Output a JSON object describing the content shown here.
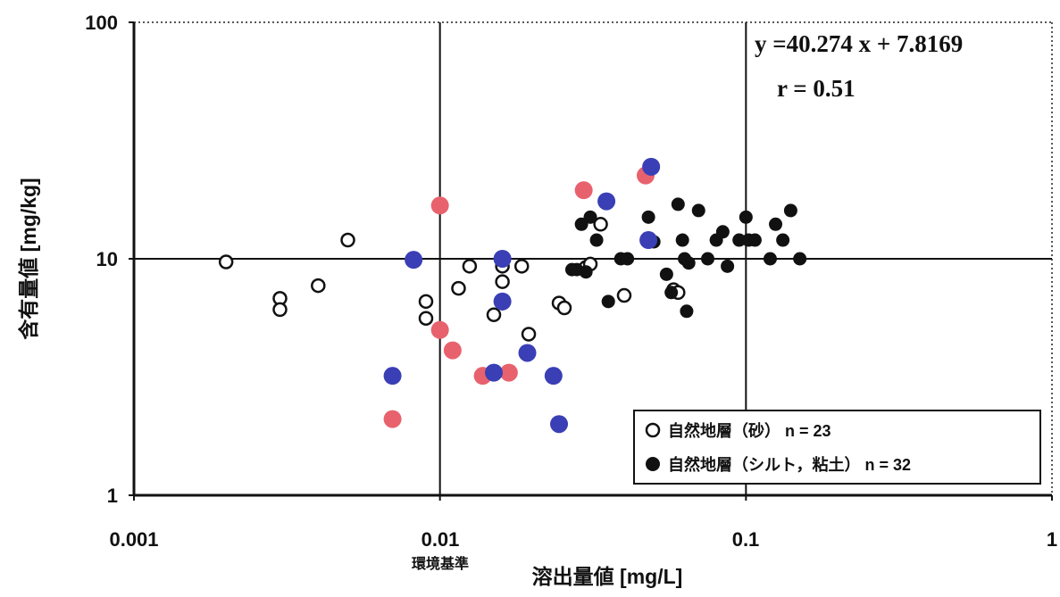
{
  "chart_data": {
    "type": "scatter",
    "x_scale": "log",
    "y_scale": "log",
    "xlim": [
      0.001,
      1
    ],
    "ylim": [
      1,
      100
    ],
    "grid": true,
    "x_tick_labels": [
      "0.001",
      "0.01",
      "0.1",
      "1"
    ],
    "y_tick_labels": [
      "1",
      "10",
      "100"
    ],
    "xlabel": "溶出量値 [mg/L]",
    "ylabel": "含有量値 [mg/kg]",
    "annotations": {
      "equation": "y =40.274 x + 7.8169",
      "r_value": "r = 0.51",
      "x_reference": "環境基準"
    },
    "legend_position": "bottom-right",
    "series": [
      {
        "name": "自然地層（砂） n = 23",
        "marker": "open-circle",
        "color": "#111111",
        "points": [
          [
            0.002,
            9.7
          ],
          [
            0.003,
            6.8
          ],
          [
            0.003,
            6.1
          ],
          [
            0.004,
            7.7
          ],
          [
            0.005,
            12.0
          ],
          [
            0.009,
            6.6
          ],
          [
            0.009,
            5.6
          ],
          [
            0.0115,
            7.5
          ],
          [
            0.0125,
            9.3
          ],
          [
            0.015,
            5.8
          ],
          [
            0.016,
            8.0
          ],
          [
            0.016,
            9.3
          ],
          [
            0.0185,
            9.3
          ],
          [
            0.0195,
            4.8
          ],
          [
            0.0245,
            6.5
          ],
          [
            0.0255,
            6.2
          ],
          [
            0.03,
            9.2
          ],
          [
            0.031,
            9.5
          ],
          [
            0.0335,
            14.0
          ],
          [
            0.04,
            7.0
          ],
          [
            0.058,
            7.4
          ],
          [
            0.016,
            6.5
          ],
          [
            0.06,
            7.2
          ]
        ]
      },
      {
        "name": "自然地層（シルト，粘土） n = 32",
        "marker": "filled-circle",
        "color": "#111111",
        "points": [
          [
            0.027,
            9.0
          ],
          [
            0.028,
            9.0
          ],
          [
            0.029,
            14.0
          ],
          [
            0.03,
            8.8
          ],
          [
            0.031,
            15.0
          ],
          [
            0.0325,
            12.0
          ],
          [
            0.0355,
            6.6
          ],
          [
            0.039,
            10.0
          ],
          [
            0.041,
            10.0
          ],
          [
            0.048,
            15.0
          ],
          [
            0.05,
            11.8
          ],
          [
            0.055,
            8.6
          ],
          [
            0.057,
            7.2
          ],
          [
            0.06,
            17.0
          ],
          [
            0.062,
            12.0
          ],
          [
            0.063,
            10.0
          ],
          [
            0.064,
            6.0
          ],
          [
            0.065,
            9.6
          ],
          [
            0.07,
            16.0
          ],
          [
            0.075,
            10.0
          ],
          [
            0.08,
            12.0
          ],
          [
            0.084,
            13.0
          ],
          [
            0.087,
            9.3
          ],
          [
            0.095,
            12.0
          ],
          [
            0.1,
            15.0
          ],
          [
            0.102,
            12.0
          ],
          [
            0.107,
            12.0
          ],
          [
            0.12,
            10.0
          ],
          [
            0.125,
            14.0
          ],
          [
            0.132,
            12.0
          ],
          [
            0.14,
            16.0
          ],
          [
            0.15,
            10.0
          ]
        ]
      },
      {
        "name": "",
        "marker": "filled-circle",
        "color": "#e8626e",
        "points": [
          [
            0.007,
            2.1
          ],
          [
            0.01,
            16.8
          ],
          [
            0.01,
            5.0
          ],
          [
            0.011,
            4.1
          ],
          [
            0.0138,
            3.2
          ],
          [
            0.0168,
            3.3
          ],
          [
            0.0295,
            19.5
          ],
          [
            0.047,
            22.5
          ]
        ]
      },
      {
        "name": "",
        "marker": "filled-circle",
        "color": "#3a3fb5",
        "points": [
          [
            0.007,
            3.2
          ],
          [
            0.0082,
            9.9
          ],
          [
            0.015,
            3.3
          ],
          [
            0.016,
            10.0
          ],
          [
            0.016,
            6.6
          ],
          [
            0.0193,
            4.0
          ],
          [
            0.0235,
            3.2
          ],
          [
            0.0245,
            2.0
          ],
          [
            0.035,
            17.5
          ],
          [
            0.048,
            12.0
          ],
          [
            0.049,
            24.5
          ]
        ]
      }
    ]
  }
}
